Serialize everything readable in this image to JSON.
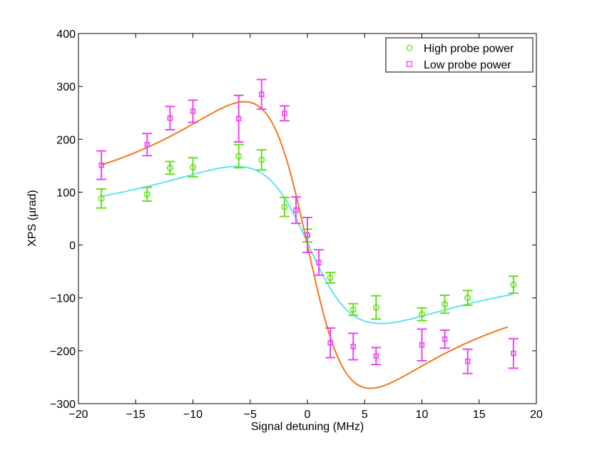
{
  "chart_data": {
    "type": "scatter",
    "title": "",
    "xlabel": "Signal detuning (MHz)",
    "ylabel": "XPS (µrad)",
    "xlim": [
      -20,
      20
    ],
    "ylim": [
      -300,
      400
    ],
    "xticks": [
      -20,
      -15,
      -10,
      -5,
      0,
      5,
      10,
      15,
      20
    ],
    "xtick_labels": [
      "−20",
      "−15",
      "−10",
      "−5",
      "0",
      "5",
      "10",
      "15",
      "20"
    ],
    "yticks": [
      -300,
      -200,
      -100,
      0,
      100,
      200,
      300,
      400
    ],
    "ytick_labels": [
      "−300",
      "−200",
      "−100",
      "0",
      "100",
      "200",
      "300",
      "400"
    ],
    "grid": false,
    "legend_position": "top-right",
    "series": [
      {
        "name": "High probe power",
        "marker": "circle",
        "color": "#66e01a",
        "points": [
          {
            "x": -18,
            "y": 88,
            "err": 18
          },
          {
            "x": -14,
            "y": 96,
            "err": 13
          },
          {
            "x": -12,
            "y": 146,
            "err": 12
          },
          {
            "x": -10,
            "y": 147,
            "err": 18
          },
          {
            "x": -6,
            "y": 168,
            "err": 22
          },
          {
            "x": -4,
            "y": 161,
            "err": 19
          },
          {
            "x": -2,
            "y": 72,
            "err": 18
          },
          {
            "x": 0,
            "y": 18,
            "err": 12
          },
          {
            "x": 2,
            "y": -62,
            "err": 10
          },
          {
            "x": 4,
            "y": -122,
            "err": 11
          },
          {
            "x": 6,
            "y": -118,
            "err": 22
          },
          {
            "x": 10,
            "y": -131,
            "err": 12
          },
          {
            "x": 12,
            "y": -112,
            "err": 17
          },
          {
            "x": 14,
            "y": -100,
            "err": 14
          },
          {
            "x": 18,
            "y": -75,
            "err": 16
          }
        ],
        "fit": {
          "color": "#5ee4f0",
          "peak": 148,
          "peak_x": -6.2,
          "trough": -149,
          "trough_x": 6.4,
          "range": [
            -18,
            18
          ]
        }
      },
      {
        "name": "Low probe power",
        "marker": "square",
        "color": "#ee44ee",
        "points": [
          {
            "x": -18,
            "y": 151,
            "err": 27
          },
          {
            "x": -14,
            "y": 190,
            "err": 21
          },
          {
            "x": -12,
            "y": 240,
            "err": 22
          },
          {
            "x": -10,
            "y": 253,
            "err": 21
          },
          {
            "x": -6,
            "y": 239,
            "err": 44
          },
          {
            "x": -4,
            "y": 285,
            "err": 28
          },
          {
            "x": -2,
            "y": 249,
            "err": 14
          },
          {
            "x": -1,
            "y": 66,
            "err": 25
          },
          {
            "x": 0,
            "y": 19,
            "err": 33
          },
          {
            "x": 1,
            "y": -33,
            "err": 24
          },
          {
            "x": 2,
            "y": -185,
            "err": 28
          },
          {
            "x": 4,
            "y": -192,
            "err": 25
          },
          {
            "x": 6,
            "y": -210,
            "err": 16
          },
          {
            "x": 10,
            "y": -189,
            "err": 30
          },
          {
            "x": 12,
            "y": -178,
            "err": 17
          },
          {
            "x": 14,
            "y": -220,
            "err": 23
          },
          {
            "x": 18,
            "y": -205,
            "err": 28
          }
        ],
        "fit": {
          "color": "#f07820",
          "peak": 271,
          "peak_x": -5.5,
          "trough": -271,
          "trough_x": 5.5,
          "range": [
            -18,
            17.5
          ]
        }
      }
    ]
  }
}
